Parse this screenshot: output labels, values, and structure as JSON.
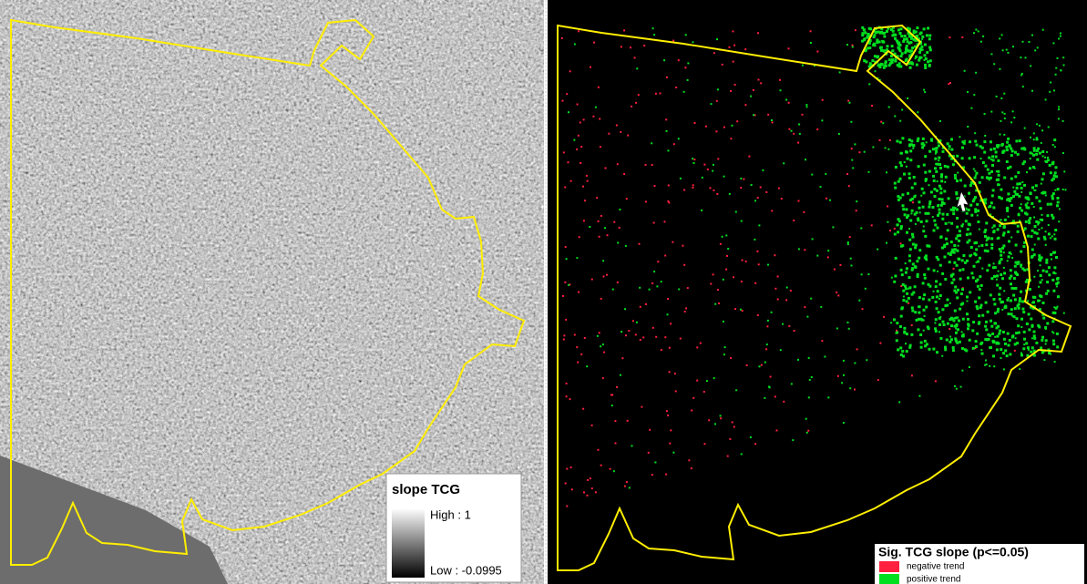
{
  "left_panel": {
    "legend": {
      "title": "slope TCG",
      "high_label": "High : 1",
      "low_label": "Low : -0.0995"
    }
  },
  "right_panel": {
    "legend": {
      "title": "Sig. TCG slope (p<=0.05)",
      "items": [
        {
          "label": "negative trend",
          "color": "#ff2040"
        },
        {
          "label": "positive trend",
          "color": "#00e020"
        }
      ]
    }
  }
}
